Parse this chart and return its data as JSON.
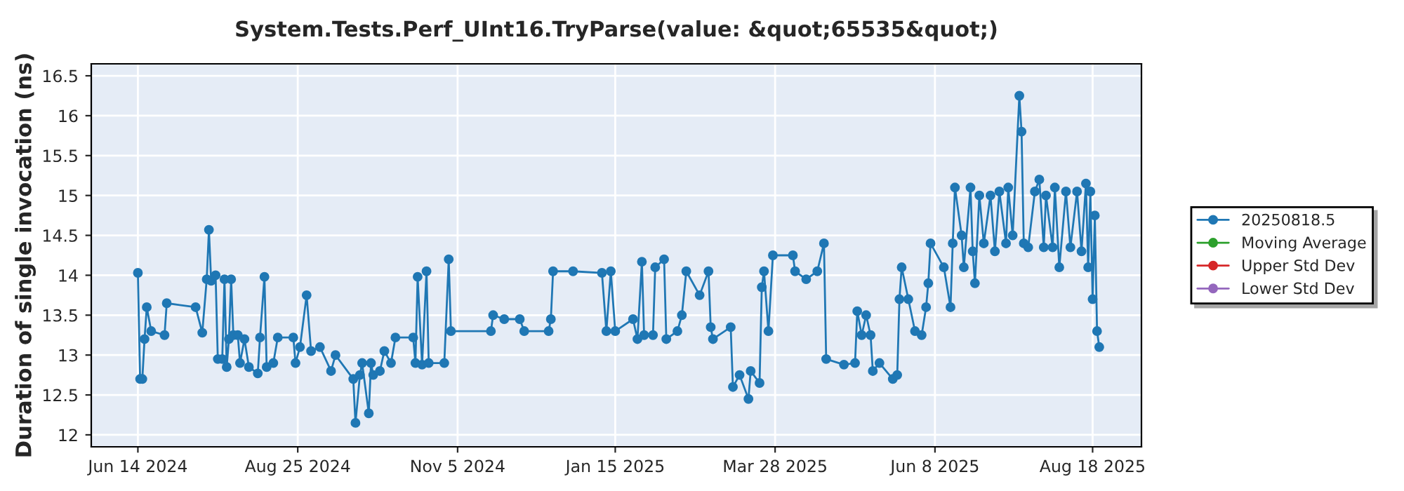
{
  "chart_data": {
    "type": "line",
    "title": "System.Tests.Perf_UInt16.TryParse(value: &quot;65535&quot;)",
    "ylabel": "Duration of single invocation (ns)",
    "xlim": [
      "2024-05-24",
      "2025-09-09"
    ],
    "ylim": [
      11.85,
      16.65
    ],
    "xticks": [
      {
        "value": "2024-06-14",
        "label": "Jun 14 2024"
      },
      {
        "value": "2024-08-25",
        "label": "Aug 25 2024"
      },
      {
        "value": "2024-11-05",
        "label": "Nov 5 2024"
      },
      {
        "value": "2025-01-15",
        "label": "Jan 15 2025"
      },
      {
        "value": "2025-03-28",
        "label": "Mar 28 2025"
      },
      {
        "value": "2025-06-08",
        "label": "Jun 8 2025"
      },
      {
        "value": "2025-08-18",
        "label": "Aug 18 2025"
      }
    ],
    "yticks": [
      12,
      12.5,
      13,
      13.5,
      14,
      14.5,
      15,
      15.5,
      16,
      16.5
    ],
    "grid": true,
    "legend": "right",
    "marker": "circle",
    "line_style": "solid",
    "series": [
      {
        "name": "20250818.5",
        "color": "#1f77b4",
        "x": [
          "2024-06-14",
          "2024-06-15",
          "2024-06-16",
          "2024-06-17",
          "2024-06-18",
          "2024-06-20",
          "2024-06-26",
          "2024-06-27",
          "2024-07-10",
          "2024-07-13",
          "2024-07-15",
          "2024-07-16",
          "2024-07-17",
          "2024-07-19",
          "2024-07-20",
          "2024-07-22",
          "2024-07-23",
          "2024-07-24",
          "2024-07-25",
          "2024-07-26",
          "2024-07-27",
          "2024-07-29",
          "2024-07-30",
          "2024-08-01",
          "2024-08-03",
          "2024-08-07",
          "2024-08-08",
          "2024-08-10",
          "2024-08-11",
          "2024-08-14",
          "2024-08-16",
          "2024-08-23",
          "2024-08-24",
          "2024-08-26",
          "2024-08-29",
          "2024-08-31",
          "2024-09-04",
          "2024-09-09",
          "2024-09-11",
          "2024-09-19",
          "2024-09-20",
          "2024-09-22",
          "2024-09-23",
          "2024-09-26",
          "2024-09-27",
          "2024-09-28",
          "2024-10-01",
          "2024-10-03",
          "2024-10-06",
          "2024-10-08",
          "2024-10-16",
          "2024-10-17",
          "2024-10-18",
          "2024-10-20",
          "2024-10-22",
          "2024-10-23",
          "2024-10-30",
          "2024-11-01",
          "2024-11-02",
          "2024-11-20",
          "2024-11-21",
          "2024-11-26",
          "2024-12-03",
          "2024-12-05",
          "2024-12-16",
          "2024-12-17",
          "2024-12-18",
          "2024-12-27",
          "2025-01-09",
          "2025-01-11",
          "2025-01-13",
          "2025-01-15",
          "2025-01-23",
          "2025-01-25",
          "2025-01-27",
          "2025-01-28",
          "2025-02-01",
          "2025-02-02",
          "2025-02-06",
          "2025-02-07",
          "2025-02-12",
          "2025-02-14",
          "2025-02-16",
          "2025-02-22",
          "2025-02-26",
          "2025-02-27",
          "2025-02-28",
          "2025-03-08",
          "2025-03-09",
          "2025-03-12",
          "2025-03-16",
          "2025-03-17",
          "2025-03-21",
          "2025-03-22",
          "2025-03-23",
          "2025-03-25",
          "2025-03-27",
          "2025-04-05",
          "2025-04-06",
          "2025-04-11",
          "2025-04-16",
          "2025-04-19",
          "2025-04-20",
          "2025-04-28",
          "2025-05-03",
          "2025-05-04",
          "2025-05-06",
          "2025-05-08",
          "2025-05-10",
          "2025-05-11",
          "2025-05-14",
          "2025-05-20",
          "2025-05-22",
          "2025-05-23",
          "2025-05-24",
          "2025-05-27",
          "2025-05-30",
          "2025-06-02",
          "2025-06-04",
          "2025-06-05",
          "2025-06-06",
          "2025-06-12",
          "2025-06-15",
          "2025-06-16",
          "2025-06-17",
          "2025-06-20",
          "2025-06-21",
          "2025-06-24",
          "2025-06-25",
          "2025-06-26",
          "2025-06-28",
          "2025-06-30",
          "2025-07-03",
          "2025-07-05",
          "2025-07-07",
          "2025-07-10",
          "2025-07-11",
          "2025-07-13",
          "2025-07-16",
          "2025-07-17",
          "2025-07-18",
          "2025-07-20",
          "2025-07-23",
          "2025-07-25",
          "2025-07-27",
          "2025-07-28",
          "2025-07-31",
          "2025-08-01",
          "2025-08-03",
          "2025-08-06",
          "2025-08-08",
          "2025-08-11",
          "2025-08-13",
          "2025-08-15",
          "2025-08-16",
          "2025-08-17",
          "2025-08-18",
          "2025-08-19",
          "2025-08-20",
          "2025-08-21"
        ],
        "values": [
          14.03,
          12.7,
          12.7,
          13.2,
          13.6,
          13.3,
          13.25,
          13.65,
          13.6,
          13.28,
          13.95,
          14.57,
          13.93,
          14.0,
          12.95,
          12.95,
          13.95,
          12.85,
          13.2,
          13.95,
          13.25,
          13.25,
          12.9,
          13.2,
          12.85,
          12.77,
          13.22,
          13.98,
          12.85,
          12.9,
          13.22,
          13.22,
          12.9,
          13.1,
          13.75,
          13.05,
          13.1,
          12.8,
          13.0,
          12.7,
          12.15,
          12.75,
          12.9,
          12.27,
          12.9,
          12.75,
          12.8,
          13.05,
          12.9,
          13.22,
          13.22,
          12.9,
          13.98,
          12.88,
          14.05,
          12.9,
          12.9,
          14.2,
          13.3,
          13.3,
          13.5,
          13.45,
          13.45,
          13.3,
          13.3,
          13.45,
          14.05,
          14.05,
          14.03,
          13.3,
          14.05,
          13.3,
          13.45,
          13.2,
          14.17,
          13.25,
          13.25,
          14.1,
          14.2,
          13.2,
          13.3,
          13.5,
          14.05,
          13.75,
          14.05,
          13.35,
          13.2,
          13.35,
          12.6,
          12.75,
          12.45,
          12.8,
          12.65,
          13.85,
          14.05,
          13.3,
          14.25,
          14.25,
          14.05,
          13.95,
          14.05,
          14.4,
          12.95,
          12.88,
          12.9,
          13.55,
          13.25,
          13.5,
          13.25,
          12.8,
          12.9,
          12.7,
          12.75,
          13.7,
          14.1,
          13.7,
          13.3,
          13.25,
          13.6,
          13.9,
          14.4,
          14.1,
          13.6,
          14.4,
          15.1,
          14.5,
          14.1,
          15.1,
          14.3,
          13.9,
          15.0,
          14.4,
          15.0,
          14.3,
          15.05,
          14.4,
          15.1,
          14.5,
          16.25,
          15.8,
          14.4,
          14.35,
          15.05,
          15.2,
          14.35,
          15.0,
          14.35,
          15.1,
          14.1,
          15.05,
          14.35,
          15.05,
          14.3,
          15.15,
          14.1,
          15.05,
          13.7,
          14.75,
          13.3,
          13.1
        ]
      },
      {
        "name": "Moving Average",
        "color": "#2ca02c"
      },
      {
        "name": "Upper Std Dev",
        "color": "#d62728"
      },
      {
        "name": "Lower Std Dev",
        "color": "#9467bd"
      }
    ]
  }
}
